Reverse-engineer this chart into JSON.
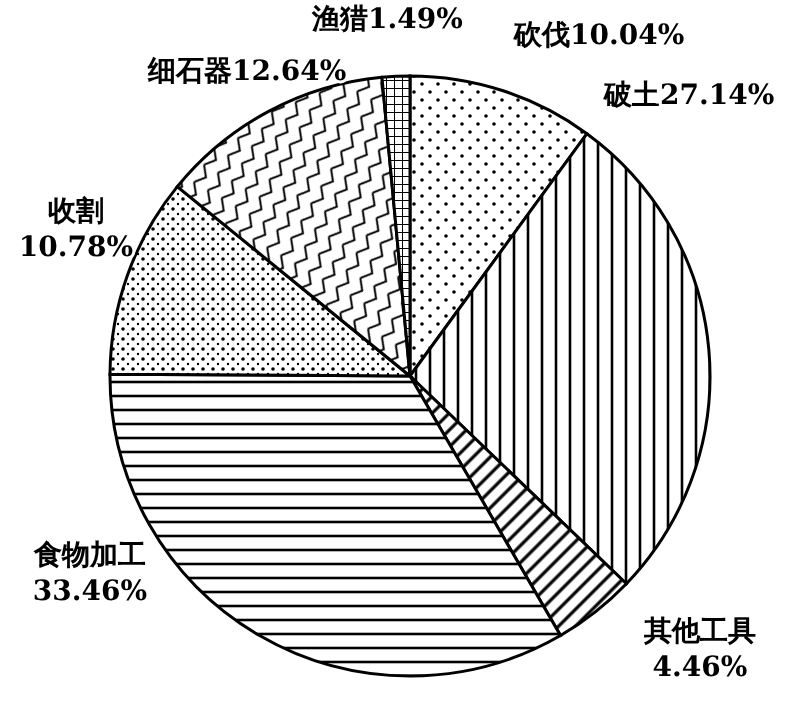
{
  "chart_data": {
    "type": "pie",
    "categories": [
      "砍伐",
      "破土",
      "其他工具",
      "食物加工",
      "收割",
      "细石器",
      "渔猎"
    ],
    "values": [
      10.04,
      27.14,
      4.46,
      33.46,
      10.78,
      12.64,
      1.49
    ],
    "value_labels": [
      "10.04%",
      "27.14%",
      "4.46%",
      "33.46%",
      "10.78%",
      "12.64%",
      "1.49%"
    ]
  }
}
